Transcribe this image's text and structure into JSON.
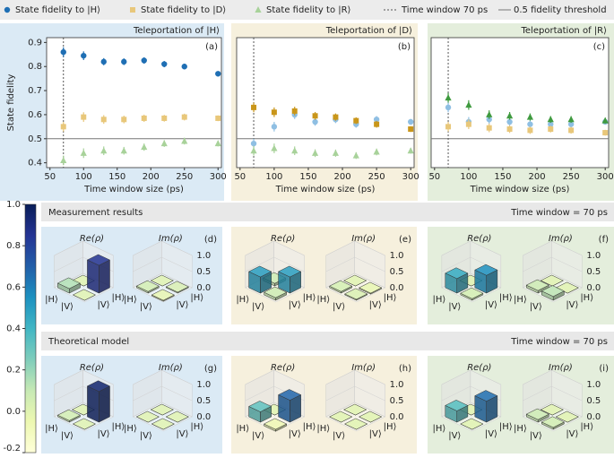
{
  "chart_data": [
    {
      "type": "scatter",
      "title": "Teleportation of |H⟩",
      "label": "(a)",
      "title_color": "#2a7fc0",
      "background": "#dbeaf5",
      "x": [
        70,
        100,
        130,
        160,
        190,
        220,
        250,
        300
      ],
      "xlim": [
        45,
        305
      ],
      "xticks": [
        50,
        100,
        150,
        200,
        250,
        300
      ],
      "ylim": [
        0.38,
        0.92
      ],
      "yticks": [
        0.4,
        0.5,
        0.6,
        0.7,
        0.8,
        0.9
      ],
      "xlabel": "Time window size (ps)",
      "ylabel": "State fidelity",
      "vline": {
        "name": "Time window 70 ps",
        "x": 70
      },
      "hline": {
        "name": "0.5 fidelity threshold",
        "y": 0.5
      },
      "series": [
        {
          "name": "State fidelity to |H⟩",
          "color": "#1f6fb4",
          "marker": "circle",
          "values": [
            0.86,
            0.845,
            0.82,
            0.82,
            0.825,
            0.81,
            0.8,
            0.77
          ],
          "errors": [
            0.02,
            0.018,
            0.015,
            0.014,
            0.013,
            0.013,
            0.012,
            0.01
          ]
        },
        {
          "name": "State fidelity to |D⟩",
          "color": "#e8c77a",
          "marker": "square",
          "values": [
            0.55,
            0.59,
            0.58,
            0.58,
            0.585,
            0.585,
            0.59,
            0.585
          ],
          "errors": [
            0.02,
            0.02,
            0.018,
            0.016,
            0.015,
            0.014,
            0.014,
            0.012
          ]
        },
        {
          "name": "State fidelity to |R⟩",
          "color": "#a8d29a",
          "marker": "triangle",
          "values": [
            0.41,
            0.44,
            0.45,
            0.45,
            0.465,
            0.48,
            0.49,
            0.48
          ],
          "errors": [
            0.02,
            0.02,
            0.018,
            0.016,
            0.015,
            0.014,
            0.014,
            0.012
          ]
        }
      ]
    },
    {
      "type": "scatter",
      "title": "Teleportation of |D⟩",
      "label": "(b)",
      "title_color": "#d4a017",
      "background": "#f6f0dd",
      "x": [
        70,
        100,
        130,
        160,
        190,
        220,
        250,
        300
      ],
      "xlim": [
        45,
        305
      ],
      "xticks": [
        50,
        100,
        150,
        200,
        250,
        300
      ],
      "ylim": [
        0.38,
        0.92
      ],
      "xlabel": "Time window size (ps)",
      "vline": {
        "x": 70
      },
      "hline": {
        "y": 0.5
      },
      "series": [
        {
          "color": "#8fbfe3",
          "marker": "circle",
          "values": [
            0.48,
            0.55,
            0.6,
            0.57,
            0.58,
            0.56,
            0.58,
            0.57
          ],
          "errors": [
            0.02,
            0.02,
            0.018,
            0.016,
            0.015,
            0.014,
            0.014,
            0.012
          ]
        },
        {
          "color": "#c9961a",
          "marker": "square",
          "values": [
            0.63,
            0.61,
            0.615,
            0.595,
            0.59,
            0.575,
            0.56,
            0.54
          ],
          "errors": [
            0.02,
            0.02,
            0.018,
            0.016,
            0.015,
            0.014,
            0.014,
            0.012
          ]
        },
        {
          "color": "#a8d29a",
          "marker": "triangle",
          "values": [
            0.45,
            0.46,
            0.45,
            0.44,
            0.44,
            0.43,
            0.445,
            0.45
          ],
          "errors": [
            0.02,
            0.02,
            0.018,
            0.016,
            0.015,
            0.014,
            0.014,
            0.012
          ]
        }
      ]
    },
    {
      "type": "scatter",
      "title": "Teleportation of |R⟩",
      "label": "(c)",
      "title_color": "#3a9a3a",
      "background": "#e4eedc",
      "x": [
        70,
        100,
        130,
        160,
        190,
        220,
        250,
        300
      ],
      "xlim": [
        45,
        305
      ],
      "xticks": [
        50,
        100,
        150,
        200,
        250,
        300
      ],
      "ylim": [
        0.38,
        0.92
      ],
      "xlabel": "Time window size (ps)",
      "vline": {
        "x": 70
      },
      "hline": {
        "y": 0.5
      },
      "series": [
        {
          "color": "#8fbfe3",
          "marker": "circle",
          "values": [
            0.63,
            0.57,
            0.58,
            0.57,
            0.56,
            0.56,
            0.56,
            0.57
          ],
          "errors": [
            0.02,
            0.02,
            0.018,
            0.016,
            0.015,
            0.014,
            0.014,
            0.012
          ]
        },
        {
          "color": "#e8c77a",
          "marker": "square",
          "values": [
            0.55,
            0.56,
            0.545,
            0.54,
            0.535,
            0.54,
            0.535,
            0.525
          ],
          "errors": [
            0.02,
            0.02,
            0.018,
            0.016,
            0.015,
            0.014,
            0.014,
            0.012
          ]
        },
        {
          "color": "#3f9a3f",
          "marker": "triangle",
          "values": [
            0.67,
            0.64,
            0.6,
            0.595,
            0.59,
            0.58,
            0.58,
            0.575
          ],
          "errors": [
            0.02,
            0.02,
            0.018,
            0.016,
            0.015,
            0.014,
            0.014,
            0.012
          ]
        }
      ]
    },
    {
      "type": "bar3d",
      "label": "(d)",
      "background": "#dbeaf5",
      "re_title": "Re(ρ)",
      "im_title": "Im(ρ)",
      "basis": [
        "|H⟩",
        "|V⟩"
      ],
      "re": [
        0.0,
        0.86,
        0.14,
        0.0
      ],
      "im": [
        0.0,
        0.03,
        0.05,
        -0.03
      ],
      "zlim": [
        0,
        1
      ],
      "zticks": [
        {
          "value": 0,
          "label": "0.0"
        },
        0.5,
        {
          "value": 1,
          "label": "1.0"
        }
      ]
    },
    {
      "type": "bar3d",
      "label": "(e)",
      "background": "#f6f0dd",
      "re_title": "Re(ρ)",
      "im_title": "Im(ρ)",
      "basis": [
        "|H⟩",
        "|V⟩"
      ],
      "re": [
        0.08,
        0.5,
        0.5,
        0.08
      ],
      "im": [
        0.0,
        -0.03,
        0.05,
        0.03
      ],
      "zlim": [
        0,
        1
      ],
      "zticks": [
        {
          "value": 0,
          "label": "0.0"
        },
        0.5,
        {
          "value": 1,
          "label": "1.0"
        }
      ]
    },
    {
      "type": "bar3d",
      "label": "(f)",
      "background": "#e4eedc",
      "re_title": "Re(ρ)",
      "im_title": "Im(ρ)",
      "basis": [
        "|H⟩",
        "|V⟩"
      ],
      "re": [
        0.0,
        0.55,
        0.45,
        0.05
      ],
      "im": [
        0.0,
        0.0,
        0.08,
        0.12
      ],
      "zlim": [
        0,
        1
      ],
      "zticks": [
        {
          "value": 0,
          "label": "0.0"
        },
        0.5,
        {
          "value": 1,
          "label": "1.0"
        }
      ]
    },
    {
      "type": "bar3d",
      "label": "(g)",
      "background": "#dbeaf5",
      "re_title": "Re(ρ)",
      "im_title": "Im(ρ)",
      "basis": [
        "|H⟩",
        "|V⟩"
      ],
      "re": [
        0.0,
        0.95,
        0.05,
        0.0
      ],
      "im": [
        0.0,
        0.0,
        0.0,
        0.0
      ],
      "zlim": [
        0,
        1
      ],
      "zticks": [
        {
          "value": 0,
          "label": "0.0"
        },
        0.5,
        {
          "value": 1,
          "label": "1.0"
        }
      ]
    },
    {
      "type": "bar3d",
      "label": "(h)",
      "background": "#f6f0dd",
      "re_title": "Re(ρ)",
      "im_title": "Im(ρ)",
      "basis": [
        "|H⟩",
        "|V⟩"
      ],
      "re": [
        0.0,
        0.68,
        0.32,
        -0.06
      ],
      "im": [
        0.0,
        0.0,
        0.0,
        0.0
      ],
      "zlim": [
        0,
        1
      ],
      "zticks": [
        {
          "value": 0,
          "label": "0.0"
        },
        0.5,
        {
          "value": 1,
          "label": "1.0"
        }
      ]
    },
    {
      "type": "bar3d",
      "label": "(i)",
      "background": "#e4eedc",
      "re_title": "Re(ρ)",
      "im_title": "Im(ρ)",
      "basis": [
        "|H⟩",
        "|V⟩"
      ],
      "re": [
        0.0,
        0.65,
        0.35,
        0.0
      ],
      "im": [
        0.0,
        0.0,
        0.08,
        0.06
      ],
      "zlim": [
        0,
        1
      ],
      "zticks": [
        {
          "value": 0,
          "label": "0.0"
        },
        0.5,
        {
          "value": 1,
          "label": "1.0"
        }
      ]
    },
    {
      "type": "colorbar",
      "lim": [
        -0.2,
        1.0
      ],
      "ticks": [
        -0.2,
        {
          "value": 0,
          "label": "0.0"
        },
        0.2,
        0.4,
        0.6,
        0.8,
        {
          "value": 1,
          "label": "1.0"
        }
      ],
      "colors": [
        "#ffffd9",
        "#edf8b1",
        "#c7e9b4",
        "#7fcdbb",
        "#41b6c4",
        "#1d91c0",
        "#225ea8",
        "#253494",
        "#081d58"
      ]
    }
  ],
  "sections": [
    {
      "title": "Measurement results",
      "note": "Time window = 70 ps"
    },
    {
      "title": "Theoretical model",
      "note": "Time window = 70 ps"
    }
  ]
}
